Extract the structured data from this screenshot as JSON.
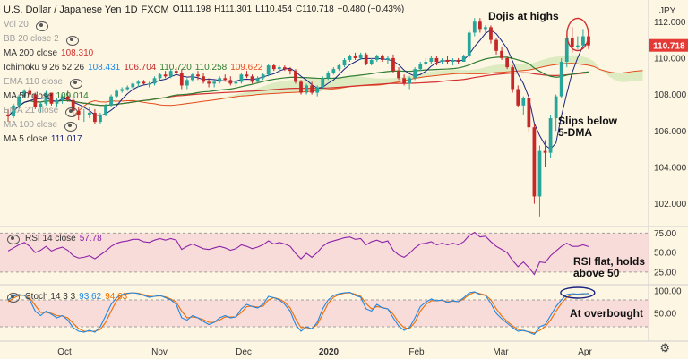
{
  "header": {
    "symbol": "U.S. Dollar / Japanese Yen",
    "timeframe": "1D",
    "source": "FXCM",
    "ohlc": {
      "open": "O111.198",
      "high": "H111.301",
      "low": "L110.454",
      "close": "C110.718"
    },
    "change": "−0.480 (−0.43%)",
    "currency": "JPY",
    "price_tag": "110.718"
  },
  "legend": [
    {
      "name": "Vol 20",
      "values": [],
      "muted": true
    },
    {
      "name": "BB 20 close 2",
      "values": [],
      "muted": true
    },
    {
      "name": "MA 200 close",
      "values": [
        "108.310"
      ],
      "muted": false,
      "color": "#d32f2f"
    },
    {
      "name": "Ichimoku 9 26 52 26",
      "values": [
        "108.431",
        "106.704",
        "110.720",
        "110.258",
        "109.622"
      ],
      "muted": false,
      "colors": [
        "#1e88e5",
        "#c62828",
        "#2e7d32",
        "#2e7d32",
        "#e64a19"
      ]
    },
    {
      "name": "EMA 110 close",
      "values": [],
      "muted": true
    },
    {
      "name": "MA 50 close",
      "values": [
        "109.014"
      ],
      "muted": false,
      "color": "#2e7d32"
    },
    {
      "name": "EMA 21 close",
      "values": [],
      "muted": true
    },
    {
      "name": "MA 100 close",
      "values": [],
      "muted": true
    },
    {
      "name": "MA 5 close",
      "values": [
        "111.017"
      ],
      "muted": false,
      "color": "#1a237e"
    }
  ],
  "rsi": {
    "label": "RSI 14 close",
    "value": "57.78",
    "ticks": [
      "75.00",
      "50.00",
      "25.00"
    ]
  },
  "stoch": {
    "label": "Stoch 14 3 3",
    "values": [
      "93.62",
      "94.63"
    ],
    "ticks": [
      "100.00",
      "50.00"
    ]
  },
  "annotations": [
    "Dojis at highs",
    "Slips below\n5-DMA",
    "RSI flat, holds\nabove 50",
    "At overbought"
  ],
  "x_labels": [
    "Oct",
    "Nov",
    "Dec",
    "2020",
    "Feb",
    "Mar",
    "Apr"
  ],
  "colors": {
    "up": "#26a69a",
    "down": "#c62828",
    "bg": "#fdf6e3",
    "panel": "#f6d6d6",
    "price_tag": "#e53935"
  },
  "chart_data": [
    {
      "type": "candlestick",
      "title": "U.S. Dollar / Japanese Yen 1D FXCM",
      "y_ticks": [
        "112.000",
        "110.000",
        "108.000",
        "106.000",
        "104.000",
        "102.000"
      ],
      "ylim": [
        100.8,
        112.8
      ],
      "x_ticks": [
        "Oct",
        "Nov",
        "Dec",
        "2020",
        "Feb",
        "Mar",
        "Apr"
      ],
      "ohlc_candles": [
        [
          106.9,
          107.2,
          106.5,
          106.8
        ],
        [
          106.8,
          107.5,
          106.7,
          107.4
        ],
        [
          107.4,
          108.0,
          107.2,
          107.9
        ],
        [
          107.9,
          108.3,
          107.8,
          108.2
        ],
        [
          108.2,
          108.4,
          107.9,
          108.0
        ],
        [
          108.0,
          108.1,
          107.2,
          107.3
        ],
        [
          107.3,
          107.6,
          107.0,
          107.5
        ],
        [
          107.5,
          108.2,
          107.4,
          108.1
        ],
        [
          108.1,
          108.1,
          107.4,
          107.5
        ],
        [
          107.5,
          107.8,
          107.3,
          107.7
        ],
        [
          107.7,
          108.0,
          107.5,
          107.9
        ],
        [
          107.9,
          108.2,
          107.6,
          107.7
        ],
        [
          107.7,
          107.9,
          106.9,
          107.1
        ],
        [
          107.1,
          107.3,
          106.6,
          106.9
        ],
        [
          106.9,
          107.2,
          106.5,
          106.9
        ],
        [
          106.9,
          107.3,
          106.7,
          107.0
        ],
        [
          107.0,
          107.2,
          106.4,
          106.5
        ],
        [
          106.5,
          107.0,
          106.4,
          106.9
        ],
        [
          106.9,
          107.5,
          106.8,
          107.4
        ],
        [
          107.4,
          108.0,
          107.3,
          107.9
        ],
        [
          107.9,
          108.3,
          107.8,
          108.2
        ],
        [
          108.2,
          108.4,
          108.1,
          108.3
        ],
        [
          108.3,
          108.5,
          108.2,
          108.4
        ],
        [
          108.4,
          108.7,
          108.3,
          108.6
        ],
        [
          108.6,
          108.8,
          108.4,
          108.7
        ],
        [
          108.7,
          108.8,
          108.5,
          108.6
        ],
        [
          108.6,
          108.7,
          108.4,
          108.6
        ],
        [
          108.6,
          109.0,
          108.5,
          108.9
        ],
        [
          108.9,
          109.2,
          108.8,
          109.1
        ],
        [
          109.1,
          109.3,
          108.9,
          109.0
        ],
        [
          109.0,
          109.4,
          108.9,
          109.3
        ],
        [
          109.3,
          109.5,
          109.1,
          109.2
        ],
        [
          109.2,
          109.4,
          108.3,
          108.5
        ],
        [
          108.5,
          108.9,
          108.3,
          108.8
        ],
        [
          108.8,
          109.2,
          108.7,
          109.1
        ],
        [
          109.1,
          109.3,
          108.8,
          109.0
        ],
        [
          109.0,
          109.2,
          108.6,
          108.7
        ],
        [
          108.7,
          108.9,
          108.4,
          108.6
        ],
        [
          108.6,
          108.8,
          108.4,
          108.7
        ],
        [
          108.7,
          109.0,
          108.6,
          108.9
        ],
        [
          108.9,
          109.1,
          108.7,
          108.8
        ],
        [
          108.8,
          109.0,
          108.5,
          108.6
        ],
        [
          108.6,
          108.8,
          108.4,
          108.7
        ],
        [
          108.7,
          109.2,
          108.6,
          109.1
        ],
        [
          109.1,
          109.3,
          108.9,
          109.0
        ],
        [
          109.0,
          109.1,
          108.6,
          108.7
        ],
        [
          108.7,
          109.0,
          108.6,
          108.9
        ],
        [
          108.9,
          109.2,
          108.8,
          109.1
        ],
        [
          109.1,
          109.7,
          109.0,
          109.6
        ],
        [
          109.6,
          109.7,
          109.3,
          109.4
        ],
        [
          109.4,
          109.6,
          109.2,
          109.5
        ],
        [
          109.5,
          109.6,
          109.3,
          109.4
        ],
        [
          109.4,
          109.5,
          109.1,
          109.3
        ],
        [
          109.3,
          109.4,
          108.6,
          108.7
        ],
        [
          108.7,
          108.8,
          108.0,
          108.1
        ],
        [
          108.1,
          108.6,
          108.0,
          108.5
        ],
        [
          108.5,
          108.7,
          108.0,
          108.1
        ],
        [
          108.1,
          108.5,
          107.9,
          108.4
        ],
        [
          108.4,
          109.0,
          108.3,
          108.9
        ],
        [
          108.9,
          109.3,
          108.8,
          109.2
        ],
        [
          109.2,
          109.5,
          109.1,
          109.4
        ],
        [
          109.4,
          109.7,
          109.3,
          109.6
        ],
        [
          109.6,
          110.0,
          109.5,
          109.9
        ],
        [
          109.9,
          110.2,
          109.8,
          110.1
        ],
        [
          110.1,
          110.3,
          109.9,
          110.0
        ],
        [
          110.0,
          110.3,
          109.9,
          110.2
        ],
        [
          110.2,
          110.3,
          109.6,
          109.7
        ],
        [
          109.7,
          110.0,
          109.6,
          109.9
        ],
        [
          109.9,
          110.2,
          109.8,
          110.1
        ],
        [
          110.1,
          110.2,
          109.8,
          109.9
        ],
        [
          109.9,
          110.1,
          109.7,
          110.0
        ],
        [
          110.0,
          110.2,
          109.2,
          109.3
        ],
        [
          109.3,
          109.5,
          108.8,
          108.9
        ],
        [
          108.9,
          109.1,
          108.5,
          108.6
        ],
        [
          108.6,
          109.0,
          108.3,
          108.9
        ],
        [
          108.9,
          109.5,
          108.8,
          109.4
        ],
        [
          109.4,
          109.8,
          109.3,
          109.7
        ],
        [
          109.7,
          110.0,
          109.6,
          109.8
        ],
        [
          109.8,
          110.1,
          109.7,
          110.0
        ],
        [
          110.0,
          110.1,
          109.6,
          109.8
        ],
        [
          109.8,
          110.0,
          109.7,
          109.9
        ],
        [
          109.9,
          110.1,
          109.7,
          109.8
        ],
        [
          109.8,
          110.0,
          109.6,
          109.9
        ],
        [
          109.9,
          110.0,
          109.7,
          109.8
        ],
        [
          109.8,
          110.2,
          109.8,
          110.1
        ],
        [
          110.1,
          111.5,
          110.0,
          111.4
        ],
        [
          111.4,
          112.2,
          111.2,
          112.0
        ],
        [
          112.0,
          112.2,
          111.4,
          111.6
        ],
        [
          111.6,
          111.8,
          111.4,
          111.7
        ],
        [
          111.7,
          111.8,
          110.8,
          111.0
        ],
        [
          111.0,
          111.1,
          110.2,
          110.4
        ],
        [
          110.4,
          110.6,
          109.9,
          110.0
        ],
        [
          110.0,
          110.1,
          109.4,
          109.5
        ],
        [
          109.5,
          109.6,
          108.1,
          108.3
        ],
        [
          108.3,
          108.5,
          107.3,
          107.4
        ],
        [
          107.4,
          107.9,
          106.9,
          107.8
        ],
        [
          107.8,
          108.0,
          105.9,
          106.2
        ],
        [
          106.2,
          106.4,
          102.0,
          102.4
        ],
        [
          102.4,
          105.2,
          101.3,
          104.9
        ],
        [
          104.9,
          105.5,
          104.0,
          104.8
        ],
        [
          104.8,
          106.9,
          104.5,
          106.7
        ],
        [
          106.7,
          108.0,
          106.0,
          107.9
        ],
        [
          107.9,
          110.0,
          107.8,
          109.8
        ],
        [
          109.8,
          111.3,
          109.5,
          111.1
        ],
        [
          111.1,
          111.7,
          110.3,
          110.6
        ],
        [
          110.6,
          111.2,
          110.5,
          110.7
        ],
        [
          110.7,
          111.6,
          110.6,
          111.2
        ],
        [
          111.2,
          111.3,
          110.5,
          110.7
        ]
      ]
    },
    {
      "type": "line",
      "title": "RSI 14 close",
      "ylim": [
        10,
        80
      ],
      "y_ticks": [
        75,
        50,
        25
      ],
      "series": [
        {
          "name": "RSI 14 close",
          "values": [
            52,
            56,
            60,
            63,
            58,
            50,
            53,
            58,
            52,
            55,
            57,
            53,
            46,
            43,
            44,
            46,
            42,
            47,
            52,
            58,
            62,
            64,
            65,
            67,
            67,
            64,
            63,
            66,
            68,
            66,
            68,
            66,
            54,
            58,
            61,
            58,
            55,
            54,
            56,
            58,
            56,
            53,
            55,
            60,
            58,
            55,
            57,
            60,
            65,
            61,
            63,
            61,
            58,
            49,
            42,
            49,
            44,
            50,
            58,
            63,
            65,
            67,
            69,
            70,
            67,
            68,
            60,
            64,
            66,
            63,
            65,
            53,
            47,
            44,
            49,
            56,
            61,
            62,
            64,
            60,
            62,
            60,
            62,
            60,
            64,
            72,
            76,
            70,
            71,
            64,
            58,
            54,
            50,
            40,
            32,
            38,
            31,
            22,
            38,
            37,
            46,
            52,
            58,
            62,
            58,
            58,
            60,
            57.78
          ]
        }
      ]
    },
    {
      "type": "line",
      "title": "Stoch 14 3 3",
      "ylim": [
        -10,
        110
      ],
      "y_ticks": [
        100,
        50
      ],
      "series": [
        {
          "name": "%K",
          "values": [
            80,
            88,
            92,
            90,
            80,
            55,
            45,
            55,
            48,
            40,
            45,
            35,
            18,
            10,
            8,
            12,
            8,
            20,
            45,
            70,
            85,
            92,
            95,
            96,
            94,
            90,
            86,
            88,
            90,
            85,
            80,
            70,
            40,
            35,
            45,
            40,
            32,
            25,
            30,
            40,
            45,
            40,
            42,
            60,
            70,
            65,
            62,
            70,
            88,
            85,
            80,
            70,
            55,
            25,
            10,
            20,
            15,
            30,
            60,
            80,
            90,
            94,
            96,
            97,
            90,
            86,
            60,
            55,
            70,
            62,
            60,
            40,
            22,
            12,
            18,
            40,
            65,
            75,
            82,
            78,
            80,
            74,
            78,
            76,
            85,
            96,
            98,
            92,
            90,
            72,
            50,
            38,
            28,
            18,
            10,
            12,
            8,
            3,
            20,
            25,
            45,
            65,
            80,
            92,
            94,
            93,
            94,
            93.62
          ]
        },
        {
          "name": "%D",
          "values": [
            76,
            84,
            90,
            90,
            84,
            68,
            52,
            52,
            50,
            45,
            44,
            40,
            28,
            16,
            10,
            10,
            10,
            14,
            30,
            55,
            78,
            90,
            94,
            96,
            95,
            92,
            88,
            88,
            89,
            87,
            82,
            75,
            55,
            40,
            42,
            40,
            36,
            30,
            30,
            35,
            42,
            42,
            42,
            52,
            65,
            66,
            64,
            66,
            80,
            85,
            82,
            75,
            62,
            38,
            18,
            18,
            16,
            25,
            48,
            72,
            86,
            92,
            95,
            96,
            93,
            88,
            72,
            60,
            65,
            63,
            60,
            48,
            30,
            18,
            16,
            30,
            55,
            70,
            78,
            78,
            79,
            76,
            77,
            76,
            82,
            92,
            97,
            94,
            91,
            80,
            60,
            44,
            32,
            22,
            14,
            11,
            9,
            6,
            12,
            20,
            35,
            55,
            72,
            86,
            92,
            93,
            93,
            94.63
          ]
        }
      ]
    }
  ]
}
